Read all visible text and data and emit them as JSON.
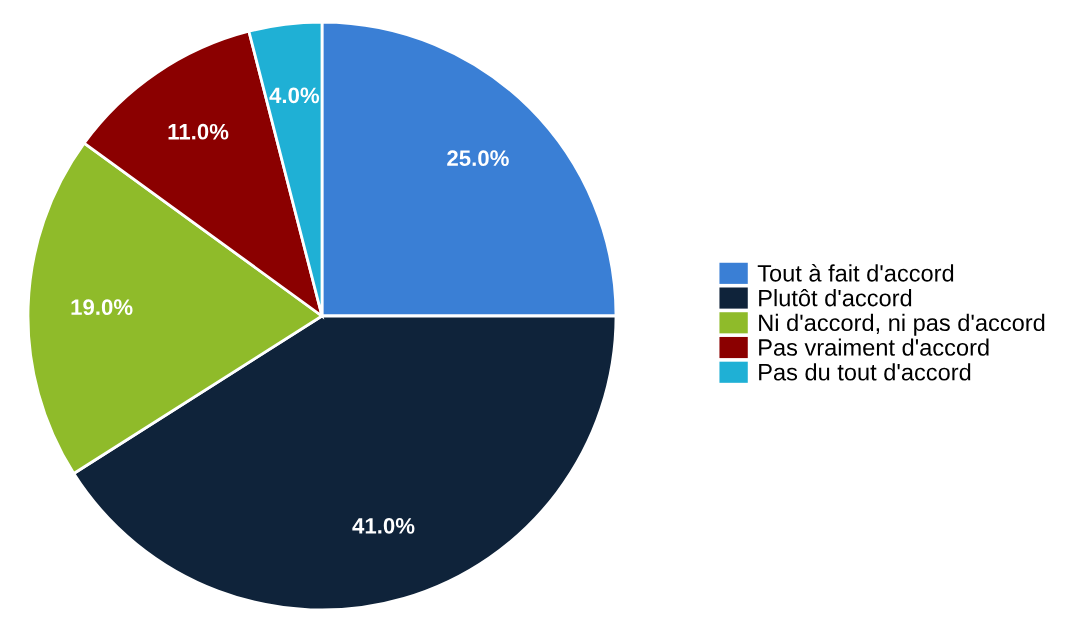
{
  "chart_data": {
    "type": "pie",
    "categories": [
      "Tout à fait d'accord",
      "Plutôt d'accord",
      "Ni d'accord, ni pas d'accord",
      "Pas vraiment d'accord",
      "Pas du tout d'accord"
    ],
    "values": [
      25,
      41,
      19,
      11,
      4
    ],
    "value_labels": [
      "25.0%",
      "41.0%",
      "19.0%",
      "11.0%",
      "4.0%"
    ],
    "colors": [
      "#3a7fd5",
      "#0f233a",
      "#8fbb2a",
      "#8b0000",
      "#1fb0d5"
    ],
    "legend": "right"
  }
}
